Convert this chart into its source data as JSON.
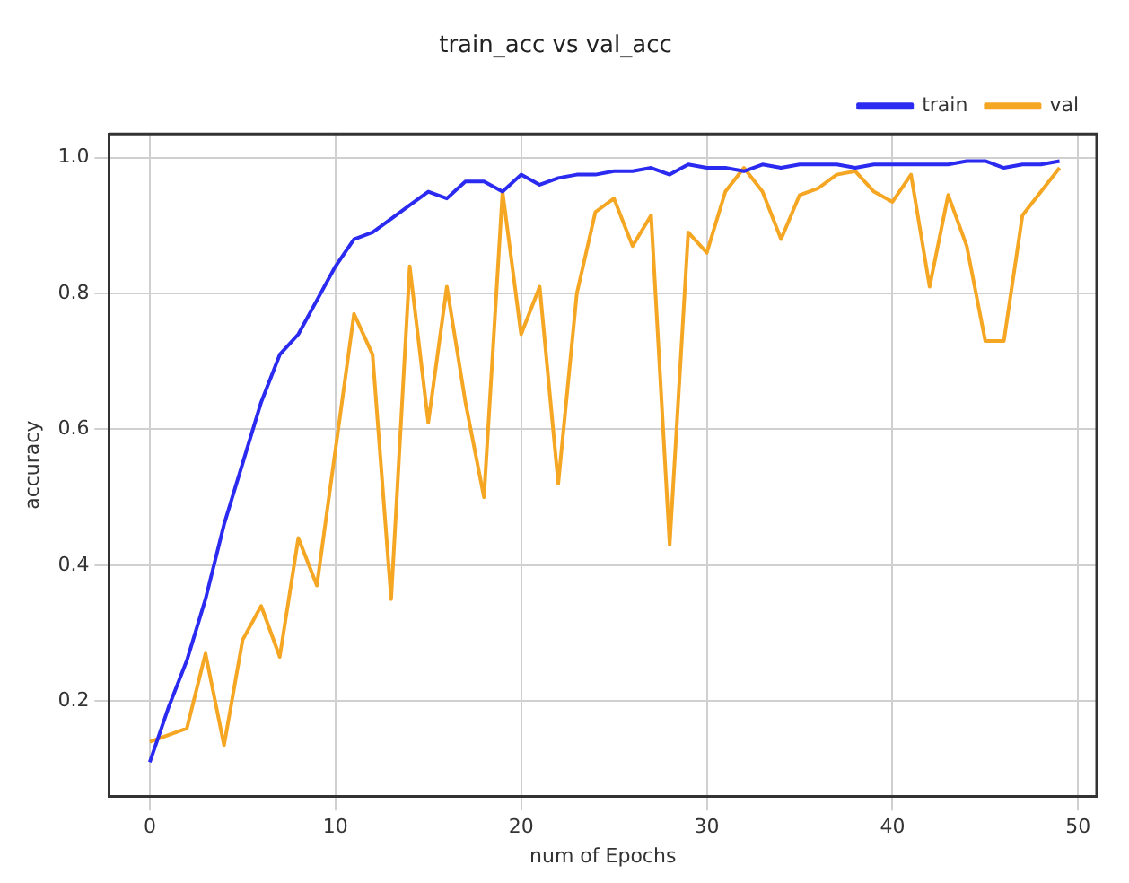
{
  "chart_data": {
    "type": "line",
    "title": "train_acc vs val_acc",
    "xlabel": "num of Epochs",
    "ylabel": "accuracy",
    "x": [
      0,
      1,
      2,
      3,
      4,
      5,
      6,
      7,
      8,
      9,
      10,
      11,
      12,
      13,
      14,
      15,
      16,
      17,
      18,
      19,
      20,
      21,
      22,
      23,
      24,
      25,
      26,
      27,
      28,
      29,
      30,
      31,
      32,
      33,
      34,
      35,
      36,
      37,
      38,
      39,
      40,
      41,
      42,
      43,
      44,
      45,
      46,
      47,
      48,
      49
    ],
    "series": [
      {
        "name": "train",
        "color": "#2a2af0",
        "values": [
          0.11,
          0.19,
          0.26,
          0.35,
          0.46,
          0.55,
          0.64,
          0.71,
          0.74,
          0.79,
          0.84,
          0.88,
          0.89,
          0.91,
          0.93,
          0.95,
          0.94,
          0.965,
          0.965,
          0.95,
          0.975,
          0.96,
          0.97,
          0.975,
          0.975,
          0.98,
          0.98,
          0.985,
          0.975,
          0.99,
          0.985,
          0.985,
          0.98,
          0.99,
          0.985,
          0.99,
          0.99,
          0.99,
          0.985,
          0.99,
          0.99,
          0.99,
          0.99,
          0.99,
          0.995,
          0.995,
          0.985,
          0.99,
          0.99,
          0.995
        ]
      },
      {
        "name": "val",
        "color": "#f5a623",
        "values": [
          0.14,
          0.15,
          0.16,
          0.27,
          0.135,
          0.29,
          0.34,
          0.265,
          0.44,
          0.37,
          0.57,
          0.77,
          0.71,
          0.35,
          0.84,
          0.61,
          0.81,
          0.64,
          0.5,
          0.95,
          0.74,
          0.81,
          0.52,
          0.8,
          0.92,
          0.94,
          0.87,
          0.915,
          0.43,
          0.89,
          0.86,
          0.95,
          0.985,
          0.95,
          0.88,
          0.945,
          0.955,
          0.975,
          0.98,
          0.95,
          0.935,
          0.975,
          0.81,
          0.945,
          0.87,
          0.73,
          0.73,
          0.915,
          0.95,
          0.985
        ]
      }
    ],
    "xlim": [
      -2.2,
      51
    ],
    "xticks": [
      0,
      10,
      20,
      30,
      40,
      50
    ],
    "ylim": [
      0.06,
      1.035
    ],
    "yticks": [
      {
        "value": 0.2,
        "label": "0.2"
      },
      {
        "value": 0.4,
        "label": "0.4"
      },
      {
        "value": 0.6,
        "label": "0.6"
      },
      {
        "value": 0.8,
        "label": "0.8"
      },
      {
        "value": 1.0,
        "label": "1.0"
      }
    ],
    "grid": true,
    "legend": "top right",
    "marker": "none",
    "line_style": "solid"
  }
}
